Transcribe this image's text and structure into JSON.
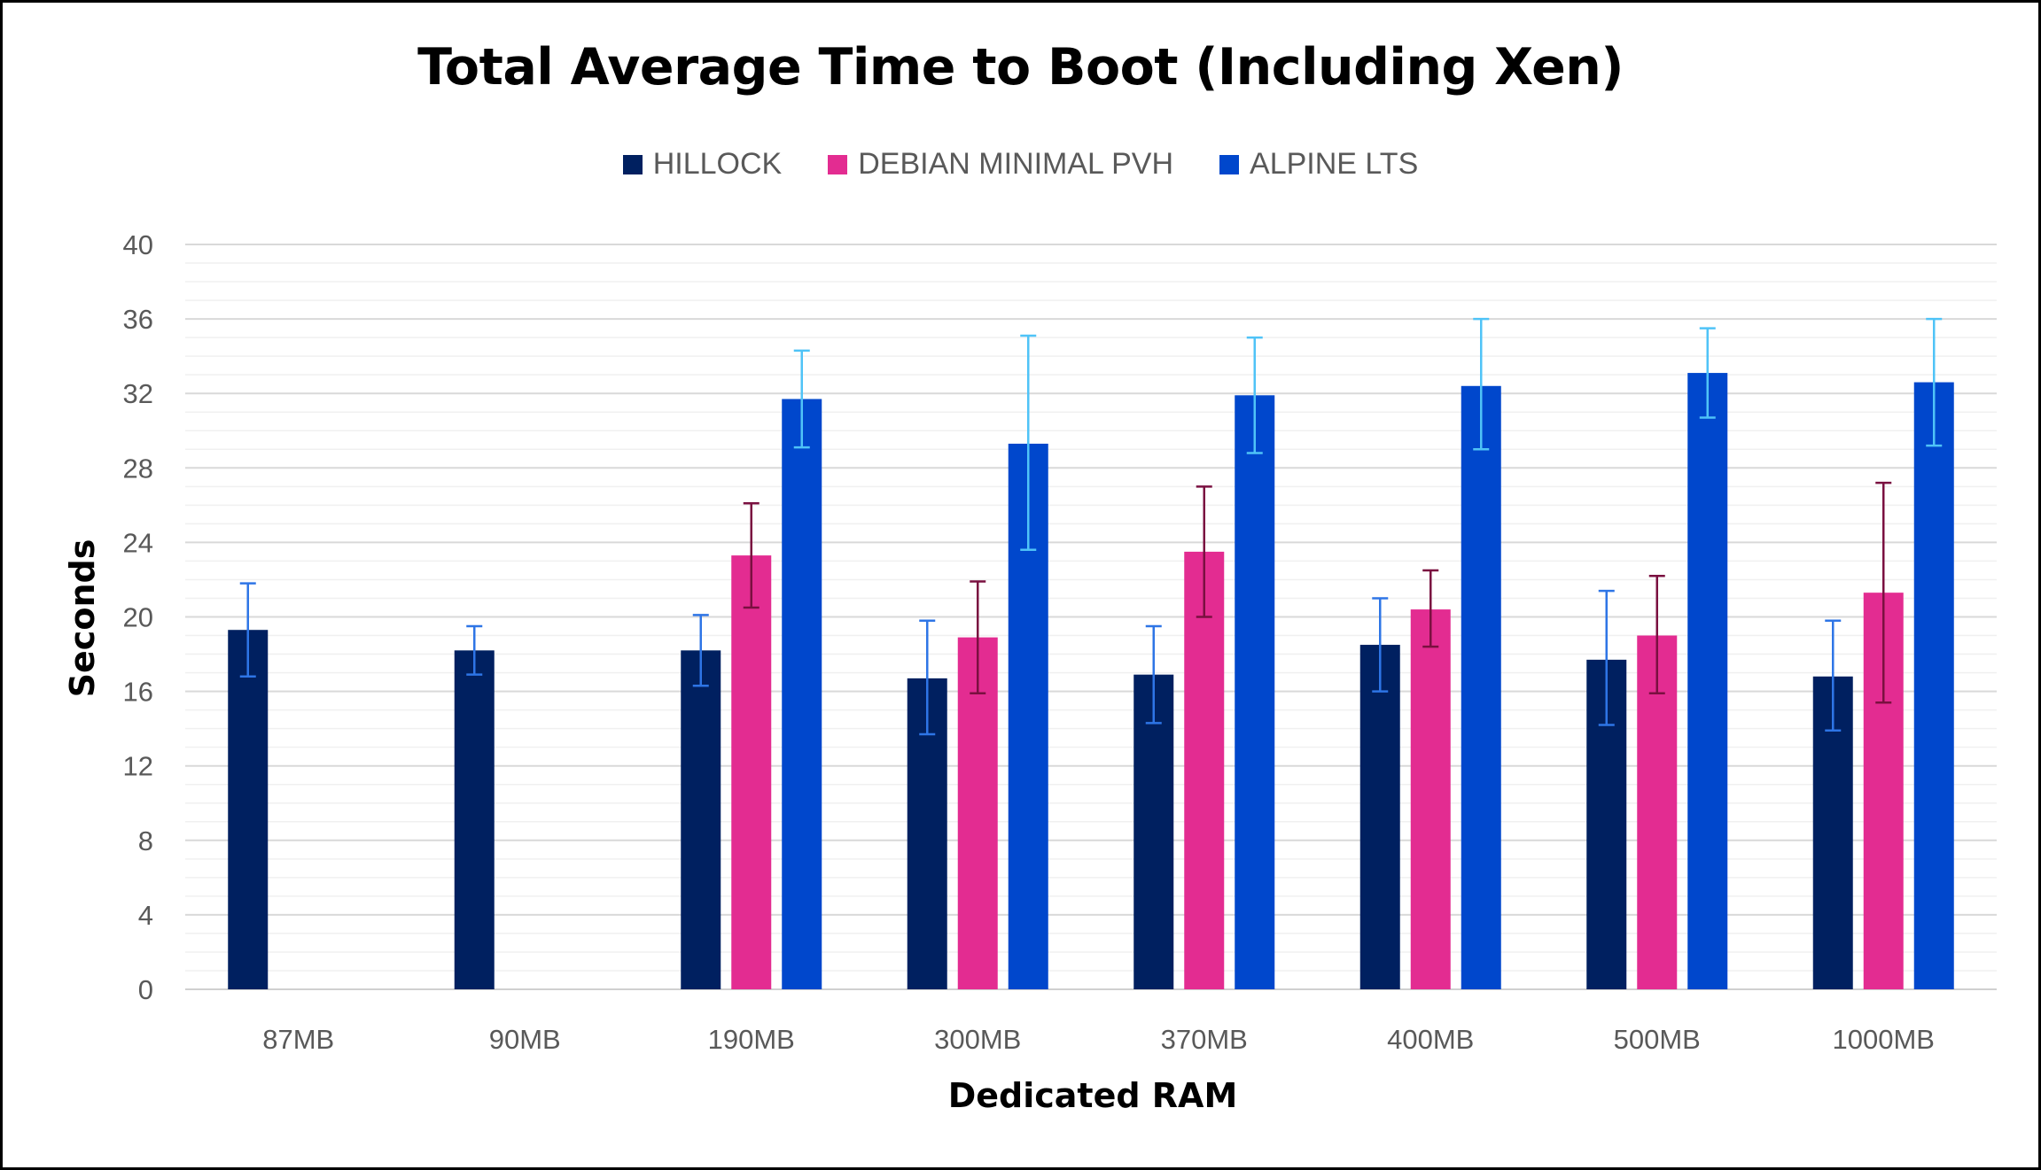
{
  "chart_data": {
    "type": "bar",
    "title": "Total Average Time to Boot (Including Xen)",
    "xlabel": "Dedicated RAM",
    "ylabel": "Seconds",
    "ylim": [
      0,
      40
    ],
    "yticks": [
      0,
      4,
      8,
      12,
      16,
      20,
      24,
      28,
      32,
      36,
      40
    ],
    "ytick_labels": [
      "0",
      "4",
      "8",
      "12",
      "16",
      "20",
      "24",
      "28",
      "32",
      "36",
      "40"
    ],
    "grid": true,
    "legend_position": "top",
    "categories": [
      "87MB",
      "90MB",
      "190MB",
      "300MB",
      "370MB",
      "400MB",
      "500MB",
      "1000MB"
    ],
    "series": [
      {
        "name": "HILLOCK",
        "color": "#002060",
        "error_color": "#2E75E6",
        "values": [
          19.3,
          18.2,
          18.2,
          16.7,
          16.9,
          18.5,
          17.7,
          16.8
        ],
        "error_low": [
          16.8,
          16.9,
          16.3,
          13.7,
          14.3,
          16.0,
          14.2,
          13.9
        ],
        "error_high": [
          21.8,
          19.5,
          20.1,
          19.8,
          19.5,
          21.0,
          21.4,
          19.8
        ]
      },
      {
        "name": "DEBIAN MINIMAL PVH",
        "color": "#E32C91",
        "error_color": "#7A1040",
        "values": [
          null,
          null,
          23.3,
          18.9,
          23.5,
          20.4,
          19.0,
          21.3
        ],
        "error_low": [
          null,
          null,
          20.5,
          15.9,
          20.0,
          18.4,
          15.9,
          15.4
        ],
        "error_high": [
          null,
          null,
          26.1,
          21.9,
          27.0,
          22.5,
          22.2,
          27.2
        ]
      },
      {
        "name": "ALPINE LTS",
        "color": "#0047CC",
        "error_color": "#4FC3F7",
        "values": [
          null,
          null,
          31.7,
          29.3,
          31.9,
          32.4,
          33.1,
          32.6
        ],
        "error_low": [
          null,
          null,
          29.1,
          23.6,
          28.8,
          29.0,
          30.7,
          29.2
        ],
        "error_high": [
          null,
          null,
          34.3,
          35.1,
          35.0,
          36.0,
          35.5,
          36.0
        ]
      }
    ]
  }
}
